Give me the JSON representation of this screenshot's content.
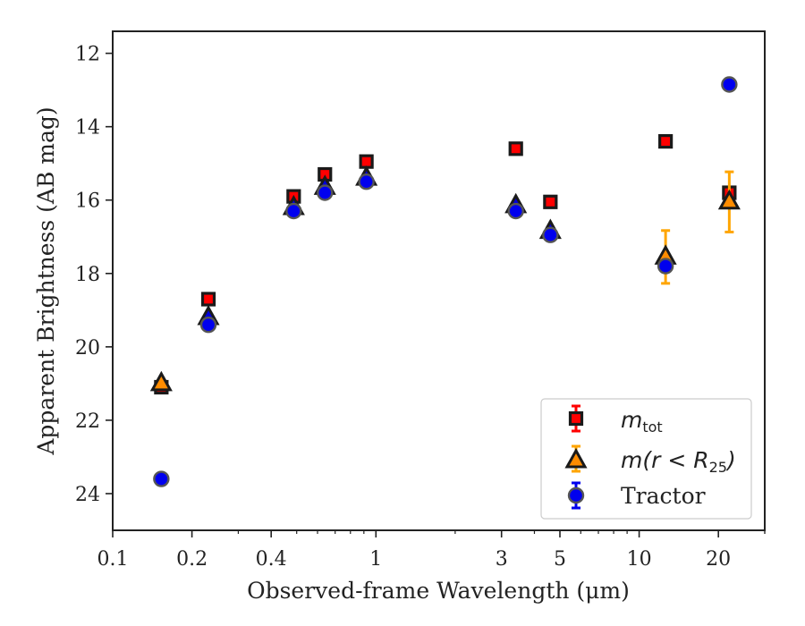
{
  "chart_data": {
    "type": "scatter",
    "xlabel": "Observed-frame Wavelength (μm)",
    "ylabel": "Apparent Brightness (AB mag)",
    "x_scale": "log",
    "y_inverted": true,
    "xlim": [
      0.1,
      30
    ],
    "ylim": [
      25.0,
      11.4
    ],
    "x_ticks": [
      0.1,
      0.2,
      0.4,
      1,
      3,
      5,
      10,
      20
    ],
    "x_tick_labels": [
      "0.1",
      "0.2",
      "0.4",
      "1",
      "3",
      "5",
      "10",
      "20"
    ],
    "y_ticks": [
      12,
      14,
      16,
      18,
      20,
      22,
      24
    ],
    "y_tick_labels": [
      "12",
      "14",
      "16",
      "18",
      "20",
      "22",
      "24"
    ],
    "legend": {
      "position": "lower right",
      "entries": [
        {
          "series": "m_tot",
          "base": "m",
          "sub": "tot"
        },
        {
          "series": "m_r25",
          "base": "m(r < R",
          "sub": "25",
          "suffix": ")"
        },
        {
          "series": "tractor",
          "text": "Tractor"
        }
      ]
    },
    "series": [
      {
        "key": "m_tot",
        "marker": "square",
        "color": "#ff0000",
        "edge": "#1a1a1a",
        "points": [
          {
            "x": 0.153,
            "y": 21.1,
            "err": 0
          },
          {
            "x": 0.231,
            "y": 18.7,
            "err": 0
          },
          {
            "x": 0.487,
            "y": 15.9,
            "err": 0
          },
          {
            "x": 0.64,
            "y": 15.3,
            "err": 0
          },
          {
            "x": 0.92,
            "y": 14.95,
            "err": 0
          },
          {
            "x": 3.4,
            "y": 14.6,
            "err": 0
          },
          {
            "x": 4.6,
            "y": 16.05,
            "err": 0
          },
          {
            "x": 12.6,
            "y": 14.4,
            "err": 0
          },
          {
            "x": 22.0,
            "y": 15.8,
            "err": 0
          }
        ]
      },
      {
        "key": "m_r25",
        "marker": "triangle",
        "color": "#ff8c00",
        "fill_blue": "#0000dd",
        "edge": "#1a1a1a",
        "errcolor": "#ffa500",
        "points": [
          {
            "x": 0.153,
            "y": 21.0,
            "err": 0,
            "fill": "orange"
          },
          {
            "x": 0.231,
            "y": 19.2,
            "err": 0,
            "fill": "blue"
          },
          {
            "x": 0.487,
            "y": 16.2,
            "err": 0,
            "fill": "blue"
          },
          {
            "x": 0.64,
            "y": 15.65,
            "err": 0,
            "fill": "blue"
          },
          {
            "x": 0.92,
            "y": 15.4,
            "err": 0,
            "fill": "blue"
          },
          {
            "x": 3.4,
            "y": 16.15,
            "err": 0,
            "fill": "blue"
          },
          {
            "x": 4.6,
            "y": 16.85,
            "err": 0,
            "fill": "blue"
          },
          {
            "x": 12.6,
            "y": 17.55,
            "err": 0.72,
            "fill": "orange"
          },
          {
            "x": 22.0,
            "y": 16.05,
            "err": 0.82,
            "fill": "orange"
          }
        ]
      },
      {
        "key": "tractor",
        "marker": "circle",
        "color": "#0000ee",
        "edge": "#555555",
        "points": [
          {
            "x": 0.153,
            "y": 23.6,
            "err": 0
          },
          {
            "x": 0.231,
            "y": 19.4,
            "err": 0
          },
          {
            "x": 0.487,
            "y": 16.3,
            "err": 0
          },
          {
            "x": 0.64,
            "y": 15.8,
            "err": 0
          },
          {
            "x": 0.92,
            "y": 15.5,
            "err": 0
          },
          {
            "x": 3.4,
            "y": 16.3,
            "err": 0
          },
          {
            "x": 4.6,
            "y": 16.95,
            "err": 0
          },
          {
            "x": 12.6,
            "y": 17.8,
            "err": 0
          },
          {
            "x": 22.0,
            "y": 12.85,
            "err": 0
          }
        ]
      }
    ]
  }
}
